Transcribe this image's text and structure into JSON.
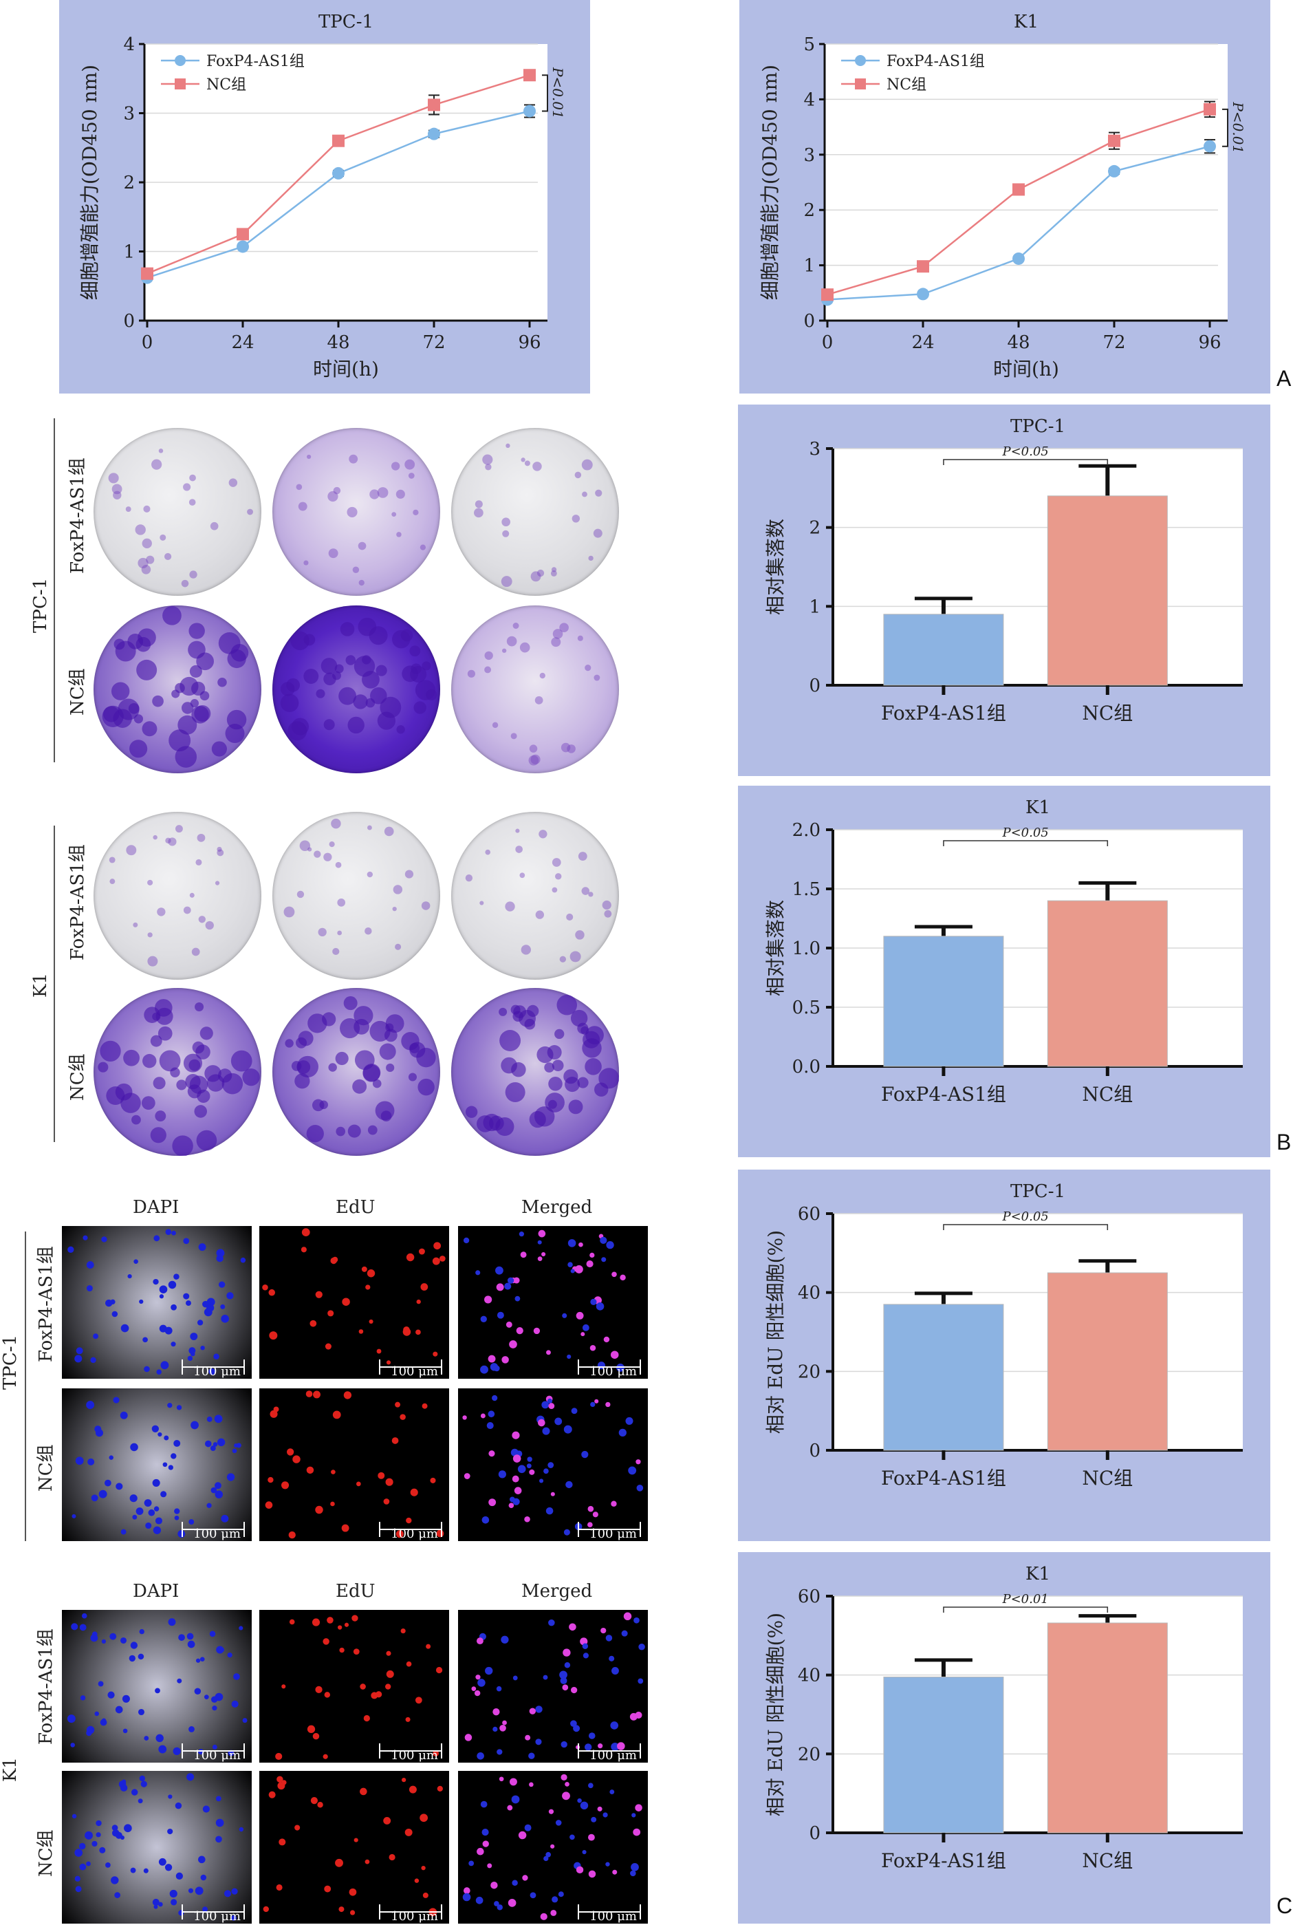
{
  "panel_letters": {
    "a": "A",
    "b": "B",
    "c": "C"
  },
  "common": {
    "group_foxp4": "FoxP4-AS1组",
    "group_nc": "NC组",
    "scale_text": "100 μm",
    "micro_cols": [
      "DAPI",
      "EdU",
      "Merged"
    ],
    "cell_tpc1": "TPC-1",
    "cell_k1": "K1"
  },
  "chart_data": [
    {
      "id": "growth_tpc1",
      "type": "line",
      "title": "TPC-1",
      "xlabel": "时间(h)",
      "ylabel": "细胞增殖能力(OD450 nm)",
      "x": [
        0,
        24,
        48,
        72,
        96
      ],
      "xticks": [
        "0",
        "24",
        "48",
        "72",
        "96"
      ],
      "ylim": [
        0,
        4
      ],
      "yticks": [
        "0",
        "1",
        "2",
        "3",
        "4"
      ],
      "grid": true,
      "legend": "top-left",
      "annotation": "P<0.01",
      "series": [
        {
          "name": "FoxP4-AS1组",
          "color": "#7eb6e6",
          "marker": "circle",
          "values": [
            0.62,
            1.07,
            2.13,
            2.7,
            3.03
          ],
          "errors": [
            0.03,
            0.03,
            0.04,
            0.05,
            0.09
          ]
        },
        {
          "name": "NC组",
          "color": "#ea7d80",
          "marker": "square",
          "values": [
            0.68,
            1.25,
            2.6,
            3.12,
            3.55
          ],
          "errors": [
            0.03,
            0.04,
            0.05,
            0.14,
            0.05
          ]
        }
      ]
    },
    {
      "id": "growth_k1",
      "type": "line",
      "title": "K1",
      "xlabel": "时间(h)",
      "ylabel": "细胞增殖能力(OD450 nm)",
      "x": [
        0,
        24,
        48,
        72,
        96
      ],
      "xticks": [
        "0",
        "24",
        "48",
        "72",
        "96"
      ],
      "ylim": [
        0,
        5
      ],
      "yticks": [
        "0",
        "1",
        "2",
        "3",
        "4",
        "5"
      ],
      "grid": true,
      "legend": "top-left",
      "annotation": "P<0.01",
      "series": [
        {
          "name": "FoxP4-AS1组",
          "color": "#7eb6e6",
          "marker": "circle",
          "values": [
            0.38,
            0.48,
            1.12,
            2.7,
            3.15
          ],
          "errors": [
            0.03,
            0.03,
            0.04,
            0.05,
            0.12
          ]
        },
        {
          "name": "NC组",
          "color": "#ea7d80",
          "marker": "square",
          "values": [
            0.47,
            0.98,
            2.37,
            3.25,
            3.82
          ],
          "errors": [
            0.03,
            0.04,
            0.05,
            0.15,
            0.14
          ]
        }
      ]
    },
    {
      "id": "colony_tpc1",
      "type": "bar",
      "title": "TPC-1",
      "ylabel": "相对集落数",
      "categories": [
        "FoxP4-AS1组",
        "NC组"
      ],
      "values": [
        0.9,
        2.4
      ],
      "errors": [
        0.2,
        0.38
      ],
      "colors": [
        "#8cb3e2",
        "#e99a8c"
      ],
      "ylim": [
        0,
        3
      ],
      "yticks": [
        "0",
        "1",
        "2",
        "3"
      ],
      "annotation": "P<0.05"
    },
    {
      "id": "colony_k1",
      "type": "bar",
      "title": "K1",
      "ylabel": "相对集落数",
      "categories": [
        "FoxP4-AS1组",
        "NC组"
      ],
      "values": [
        1.1,
        1.4
      ],
      "errors": [
        0.08,
        0.15
      ],
      "colors": [
        "#8cb3e2",
        "#e99a8c"
      ],
      "ylim": [
        0,
        2.0
      ],
      "yticks": [
        "0.0",
        "0.5",
        "1.0",
        "1.5",
        "2.0"
      ],
      "annotation": "P<0.05"
    },
    {
      "id": "edu_tpc1",
      "type": "bar",
      "title": "TPC-1",
      "ylabel": "相对 EdU 阳性细胞(%)",
      "categories": [
        "FoxP4-AS1组",
        "NC组"
      ],
      "values": [
        37,
        45
      ],
      "errors": [
        2.8,
        3.0
      ],
      "colors": [
        "#8cb3e2",
        "#e99a8c"
      ],
      "ylim": [
        0,
        60
      ],
      "yticks": [
        "0",
        "20",
        "40",
        "60"
      ],
      "annotation": "P<0.05"
    },
    {
      "id": "edu_k1",
      "type": "bar",
      "title": "K1",
      "ylabel": "相对 EdU 阳性细胞(%)",
      "categories": [
        "FoxP4-AS1组",
        "NC组"
      ],
      "values": [
        39.5,
        53.2
      ],
      "errors": [
        4.3,
        1.8
      ],
      "colors": [
        "#8cb3e2",
        "#e99a8c"
      ],
      "ylim": [
        0,
        60
      ],
      "yticks": [
        "0",
        "20",
        "40",
        "60"
      ],
      "annotation": "P<0.01"
    }
  ]
}
